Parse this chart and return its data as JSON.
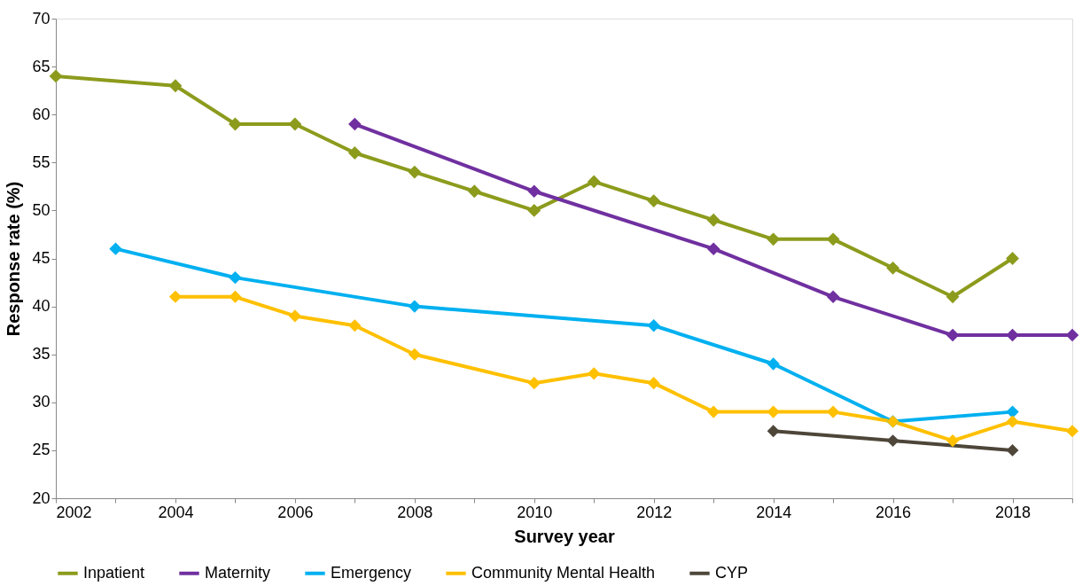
{
  "chart_data": {
    "type": "line",
    "xlabel": "Survey year",
    "ylabel": "Response rate (%)",
    "xlim": [
      2002,
      2019
    ],
    "ylim": [
      20,
      70
    ],
    "xticks": [
      2002,
      {
        "value": 2003,
        "label": null
      },
      2004,
      {
        "value": 2005,
        "label": null
      },
      2006,
      {
        "value": 2007,
        "label": null
      },
      2008,
      {
        "value": 2009,
        "label": null
      },
      2010,
      {
        "value": 2011,
        "label": null
      },
      2012,
      {
        "value": 2013,
        "label": null
      },
      2014,
      {
        "value": 2015,
        "label": null
      },
      2016,
      {
        "value": 2017,
        "label": null
      },
      2018,
      {
        "value": 2019,
        "label": null
      }
    ],
    "yticks": [
      20,
      25,
      30,
      35,
      40,
      45,
      50,
      55,
      60,
      65,
      70
    ],
    "grid": false,
    "legend": "bottom",
    "marker": "diamond",
    "line_style": "solid",
    "series": [
      {
        "name": "Inpatient",
        "color": "#8c9b1c",
        "x": [
          2002,
          2004,
          2005,
          2006,
          2007,
          2008,
          2009,
          2010,
          2011,
          2012,
          2013,
          2014,
          2015,
          2016,
          2017,
          2018
        ],
        "values": [
          64,
          63,
          59,
          59,
          56,
          54,
          52,
          50,
          53,
          51,
          49,
          47,
          47,
          44,
          41,
          45
        ]
      },
      {
        "name": "Maternity",
        "color": "#7030a0",
        "x": [
          2007,
          2010,
          2013,
          2015,
          2017,
          2018,
          2019
        ],
        "values": [
          59,
          52,
          46,
          41,
          37,
          37,
          37
        ]
      },
      {
        "name": "Emergency",
        "color": "#00b0f0",
        "x": [
          2003,
          2005,
          2008,
          2012,
          2014,
          2016,
          2018
        ],
        "values": [
          46,
          43,
          40,
          38,
          34,
          28,
          29
        ]
      },
      {
        "name": "Community Mental Health",
        "color": "#ffc000",
        "x": [
          2004,
          2005,
          2006,
          2007,
          2008,
          2010,
          2011,
          2012,
          2013,
          2014,
          2015,
          2016,
          2017,
          2018,
          2019
        ],
        "values": [
          41,
          41,
          39,
          38,
          35,
          32,
          33,
          32,
          29,
          29,
          29,
          28,
          26,
          28,
          27
        ]
      },
      {
        "name": "CYP",
        "color": "#4d4639",
        "x": [
          2014,
          2016,
          2018
        ],
        "values": [
          27,
          26,
          25
        ]
      }
    ]
  }
}
